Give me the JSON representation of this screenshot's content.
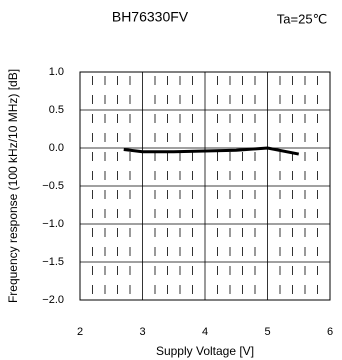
{
  "chart_data": {
    "type": "line",
    "title": "BH76330FV",
    "annotation": "Ta=25℃",
    "xlabel": "Supply Voltage [V]",
    "ylabel": "Frequency response (100 kHz/10 MHz) [dB]",
    "x": [
      2.7,
      3.0,
      3.5,
      4.0,
      4.5,
      5.0,
      5.5
    ],
    "series": [
      {
        "name": "BH76330FV",
        "color": "#000000",
        "values": [
          -0.02,
          -0.05,
          -0.05,
          -0.04,
          -0.03,
          0.0,
          -0.08
        ]
      }
    ],
    "xlim": [
      2,
      6
    ],
    "ylim": [
      -2,
      1
    ],
    "xticks": [
      2,
      3,
      4,
      5,
      6
    ],
    "xminorticks": [
      2.2,
      2.4,
      2.6,
      2.8,
      3.2,
      3.4,
      3.6,
      3.8,
      4.2,
      4.4,
      4.6,
      4.8,
      5.2,
      5.4,
      5.6,
      5.8
    ],
    "yticks": [
      {
        "value": 1,
        "label": "1.0"
      },
      {
        "value": 0.5,
        "label": "0.5"
      },
      {
        "value": 0,
        "label": "0.0"
      },
      {
        "value": -0.5,
        "label": "−0.5"
      },
      {
        "value": -1,
        "label": "−1.0"
      },
      {
        "value": -1.5,
        "label": "−1.5"
      },
      {
        "value": -2,
        "label": "−2.0"
      }
    ],
    "grid": true
  }
}
